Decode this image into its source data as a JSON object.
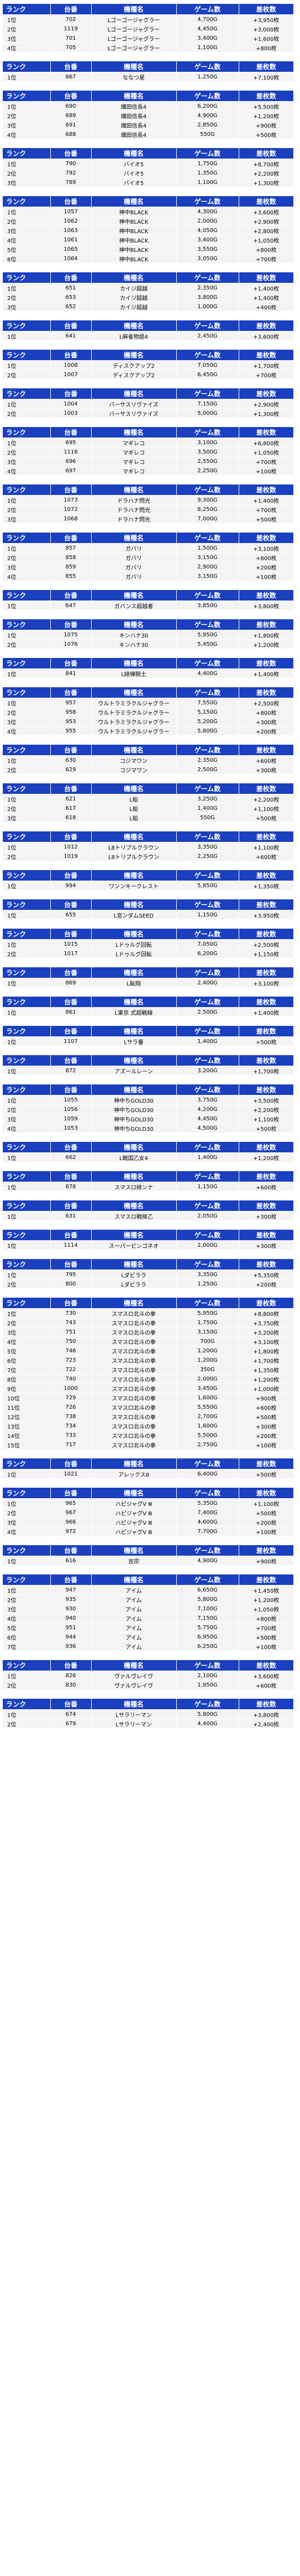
{
  "headers": {
    "rank": "ランク",
    "machine": "台番",
    "model": "機種名",
    "games": "ゲーム数",
    "diff": "差枚数"
  },
  "groups": [
    {
      "rows": [
        {
          "rank": "1位",
          "machine": "702",
          "model": "Lゴーゴージャグラー",
          "games": "4,700G",
          "diff": "+3,950枚"
        },
        {
          "rank": "2位",
          "machine": "1119",
          "model": "Lゴーゴージャグラー",
          "games": "4,450G",
          "diff": "+3,000枚"
        },
        {
          "rank": "3位",
          "machine": "701",
          "model": "Lゴーゴージャグラー",
          "games": "3,400G",
          "diff": "+1,600枚"
        },
        {
          "rank": "4位",
          "machine": "705",
          "model": "Lゴーゴージャグラー",
          "games": "1,100G",
          "diff": "+800枚"
        }
      ]
    },
    {
      "rows": [
        {
          "rank": "1位",
          "machine": "867",
          "model": "ななつ星",
          "games": "1,250G",
          "diff": "+7,100枚"
        }
      ]
    },
    {
      "rows": [
        {
          "rank": "1位",
          "machine": "690",
          "model": "織田信長4",
          "games": "6,200G",
          "diff": "+5,500枚"
        },
        {
          "rank": "2位",
          "machine": "689",
          "model": "織田信長4",
          "games": "4,900G",
          "diff": "+1,200枚"
        },
        {
          "rank": "3位",
          "machine": "691",
          "model": "織田信長4",
          "games": "2,850G",
          "diff": "+900枚"
        },
        {
          "rank": "4位",
          "machine": "688",
          "model": "織田信長4",
          "games": "550G",
          "diff": "+500枚"
        }
      ]
    },
    {
      "rows": [
        {
          "rank": "1位",
          "machine": "790",
          "model": "バイオ5",
          "games": "1,750G",
          "diff": "+8,700枚"
        },
        {
          "rank": "2位",
          "machine": "792",
          "model": "バイオ5",
          "games": "1,350G",
          "diff": "+2,200枚"
        },
        {
          "rank": "3位",
          "machine": "789",
          "model": "バイオ5",
          "games": "1,100G",
          "diff": "+1,300枚"
        }
      ]
    },
    {
      "rows": [
        {
          "rank": "1位",
          "machine": "1057",
          "model": "神中BLACK",
          "games": "4,300G",
          "diff": "+3,600枚"
        },
        {
          "rank": "2位",
          "machine": "1062",
          "model": "神中BLACK",
          "games": "2,000G",
          "diff": "+2,900枚"
        },
        {
          "rank": "3位",
          "machine": "1063",
          "model": "神中BLACK",
          "games": "4,050G",
          "diff": "+2,800枚"
        },
        {
          "rank": "4位",
          "machine": "1061",
          "model": "神中BLACK",
          "games": "3,400G",
          "diff": "+1,050枚"
        },
        {
          "rank": "5位",
          "machine": "1065",
          "model": "神中BLACK",
          "games": "3,550G",
          "diff": "+800枚"
        },
        {
          "rank": "6位",
          "machine": "1064",
          "model": "神中BLACK",
          "games": "3,050G",
          "diff": "+700枚"
        }
      ]
    },
    {
      "rows": [
        {
          "rank": "1位",
          "machine": "651",
          "model": "カイジ超越",
          "games": "2,350G",
          "diff": "+1,400枚"
        },
        {
          "rank": "2位",
          "machine": "653",
          "model": "カイジ超越",
          "games": "3,800G",
          "diff": "+1,400枚"
        },
        {
          "rank": "3位",
          "machine": "652",
          "model": "カイジ超越",
          "games": "1,000G",
          "diff": "+400枚"
        }
      ]
    },
    {
      "rows": [
        {
          "rank": "1位",
          "machine": "641",
          "model": "L麻雀物語4",
          "games": "2,450G",
          "diff": "+3,600枚"
        }
      ]
    },
    {
      "rows": [
        {
          "rank": "1位",
          "machine": "1008",
          "model": "ディスクアップ2",
          "games": "7,050G",
          "diff": "+1,700枚"
        },
        {
          "rank": "2位",
          "machine": "1007",
          "model": "ディスクアップ2",
          "games": "6,450G",
          "diff": "+700枚"
        }
      ]
    },
    {
      "rows": [
        {
          "rank": "1位",
          "machine": "1004",
          "model": "バーサスリヴァイズ",
          "games": "7,150G",
          "diff": "+2,900枚"
        },
        {
          "rank": "2位",
          "machine": "1003",
          "model": "バーサスリヴァイズ",
          "games": "5,000G",
          "diff": "+1,300枚"
        }
      ]
    },
    {
      "rows": [
        {
          "rank": "1位",
          "machine": "695",
          "model": "マギレコ",
          "games": "3,100G",
          "diff": "+6,800枚"
        },
        {
          "rank": "2位",
          "machine": "1116",
          "model": "マギレコ",
          "games": "3,500G",
          "diff": "+1,050枚"
        },
        {
          "rank": "3位",
          "machine": "696",
          "model": "マギレコ",
          "games": "2,550G",
          "diff": "+700枚"
        },
        {
          "rank": "4位",
          "machine": "697",
          "model": "マギレコ",
          "games": "2,250G",
          "diff": "+100枚"
        }
      ]
    },
    {
      "rows": [
        {
          "rank": "1位",
          "machine": "1073",
          "model": "ドラハナ閃光",
          "games": "9,300G",
          "diff": "+1,400枚"
        },
        {
          "rank": "2位",
          "machine": "1072",
          "model": "ドラハナ閃光",
          "games": "8,250G",
          "diff": "+700枚"
        },
        {
          "rank": "3位",
          "machine": "1068",
          "model": "ドラハナ閃光",
          "games": "7,000G",
          "diff": "+500枚"
        }
      ]
    },
    {
      "rows": [
        {
          "rank": "1位",
          "machine": "857",
          "model": "ガバリ",
          "games": "1,500G",
          "diff": "+3,100枚"
        },
        {
          "rank": "2位",
          "machine": "858",
          "model": "ガバリ",
          "games": "3,150G",
          "diff": "+800枚"
        },
        {
          "rank": "3位",
          "machine": "859",
          "model": "ガバリ",
          "games": "2,900G",
          "diff": "+200枚"
        },
        {
          "rank": "4位",
          "machine": "855",
          "model": "ガバリ",
          "games": "3,150G",
          "diff": "+100枚"
        }
      ]
    },
    {
      "rows": [
        {
          "rank": "1位",
          "machine": "647",
          "model": "ガバンス超越者",
          "games": "3,850G",
          "diff": "+3,800枚"
        }
      ]
    },
    {
      "rows": [
        {
          "rank": "1位",
          "machine": "1075",
          "model": "キンハナ30",
          "games": "5,950G",
          "diff": "+1,800枚"
        },
        {
          "rank": "2位",
          "machine": "1076",
          "model": "キンハナ30",
          "games": "5,450G",
          "diff": "+1,200枚"
        }
      ]
    },
    {
      "rows": [
        {
          "rank": "1位",
          "machine": "841",
          "model": "L緋弾騎士",
          "games": "4,400G",
          "diff": "+1,400枚"
        }
      ]
    },
    {
      "rows": [
        {
          "rank": "1位",
          "machine": "957",
          "model": "ウルトラミラクルジャグラー",
          "games": "7,550G",
          "diff": "+2,500枚"
        },
        {
          "rank": "2位",
          "machine": "958",
          "model": "ウルトラミラクルジャグラー",
          "games": "5,150G",
          "diff": "+800枚"
        },
        {
          "rank": "3位",
          "machine": "953",
          "model": "ウルトラミラクルジャグラー",
          "games": "5,200G",
          "diff": "+300枚"
        },
        {
          "rank": "4位",
          "machine": "955",
          "model": "ウルトラミラクルジャグラー",
          "games": "5,800G",
          "diff": "+200枚"
        }
      ]
    },
    {
      "rows": [
        {
          "rank": "1位",
          "machine": "630",
          "model": "コジマワン",
          "games": "2,350G",
          "diff": "+600枚"
        },
        {
          "rank": "2位",
          "machine": "629",
          "model": "コジマワン",
          "games": "2,500G",
          "diff": "+300枚"
        }
      ]
    },
    {
      "rows": [
        {
          "rank": "1位",
          "machine": "621",
          "model": "L船",
          "games": "3,250G",
          "diff": "+2,200枚"
        },
        {
          "rank": "2位",
          "machine": "617",
          "model": "L船",
          "games": "1,400G",
          "diff": "+1,100枚"
        },
        {
          "rank": "3位",
          "machine": "618",
          "model": "L船",
          "games": "550G",
          "diff": "+500枚"
        }
      ]
    },
    {
      "rows": [
        {
          "rank": "1位",
          "machine": "1012",
          "model": "L8トリプルクラウン",
          "games": "3,350G",
          "diff": "+1,100枚"
        },
        {
          "rank": "2位",
          "machine": "1019",
          "model": "L8トリプルクラウン",
          "games": "2,250G",
          "diff": "+600枚"
        }
      ]
    },
    {
      "rows": [
        {
          "rank": "1位",
          "machine": "994",
          "model": "ワンンキークレスト",
          "games": "5,850G",
          "diff": "+1,350枚"
        }
      ]
    },
    {
      "rows": [
        {
          "rank": "1位",
          "machine": "655",
          "model": "L宮ンダムSEED",
          "games": "1,150G",
          "diff": "+3,950枚"
        }
      ]
    },
    {
      "rows": [
        {
          "rank": "1位",
          "machine": "1015",
          "model": "Lドゥルグ回転",
          "games": "7,050G",
          "diff": "+2,500枚"
        },
        {
          "rank": "2位",
          "machine": "1017",
          "model": "Lドゥルグ回転",
          "games": "6,200G",
          "diff": "+1,150枚"
        }
      ]
    },
    {
      "rows": [
        {
          "rank": "1位",
          "machine": "869",
          "model": "L転翔",
          "games": "2,400G",
          "diff": "+3,100枚"
        }
      ]
    },
    {
      "rows": [
        {
          "rank": "1位",
          "machine": "861",
          "model": "L東京 式超戦線",
          "games": "2,500G",
          "diff": "+1,400枚"
        }
      ]
    },
    {
      "rows": [
        {
          "rank": "1位",
          "machine": "1107",
          "model": "Lサラ番",
          "games": "1,400G",
          "diff": "+500枚"
        }
      ]
    },
    {
      "rows": [
        {
          "rank": "1位",
          "machine": "872",
          "model": "アズールレーン",
          "games": "3,200G",
          "diff": "+1,700枚"
        }
      ]
    },
    {
      "rows": [
        {
          "rank": "1位",
          "machine": "1055",
          "model": "神中ちGOLD30",
          "games": "3,750G",
          "diff": "+3,500枚"
        },
        {
          "rank": "2位",
          "machine": "1056",
          "model": "神中ちGOLD30",
          "games": "4,200G",
          "diff": "+2,200枚"
        },
        {
          "rank": "3位",
          "machine": "1059",
          "model": "神中ちGOLD30",
          "games": "4,450G",
          "diff": "+1,100枚"
        },
        {
          "rank": "4位",
          "machine": "1053",
          "model": "神中ちGOLD30",
          "games": "4,500G",
          "diff": "+500枚"
        }
      ]
    },
    {
      "rows": [
        {
          "rank": "1位",
          "machine": "662",
          "model": "L戦国乙女4",
          "games": "1,400G",
          "diff": "+1,200枚"
        }
      ]
    },
    {
      "rows": [
        {
          "rank": "1位",
          "machine": "878",
          "model": "スマスロ緋ンナ",
          "games": "1,150G",
          "diff": "+600枚"
        }
      ]
    },
    {
      "rows": [
        {
          "rank": "1位",
          "machine": "631",
          "model": "スマスロ戦極乙",
          "games": "2,050G",
          "diff": "+300枚"
        }
      ]
    },
    {
      "rows": [
        {
          "rank": "1位",
          "machine": "1114",
          "model": "スーパービンゴネオ",
          "games": "2,000G",
          "diff": "+300枚"
        }
      ]
    },
    {
      "rows": [
        {
          "rank": "1位",
          "machine": "795",
          "model": "Lダビララ",
          "games": "3,350G",
          "diff": "+5,350枚"
        },
        {
          "rank": "2位",
          "machine": "800",
          "model": "Lダビララ",
          "games": "1,250G",
          "diff": "+200枚"
        }
      ]
    },
    {
      "rows": [
        {
          "rank": "1位",
          "machine": "730",
          "model": "スマスロ北斗の拳",
          "games": "5,950G",
          "diff": "+8,800枚"
        },
        {
          "rank": "2位",
          "machine": "743",
          "model": "スマスロ北斗の拳",
          "games": "1,750G",
          "diff": "+3,750枚"
        },
        {
          "rank": "3位",
          "machine": "751",
          "model": "スマスロ北斗の拳",
          "games": "3,150G",
          "diff": "+3,200枚"
        },
        {
          "rank": "4位",
          "machine": "750",
          "model": "スマスロ北斗の拳",
          "games": "700G",
          "diff": "+3,100枚"
        },
        {
          "rank": "5位",
          "machine": "746",
          "model": "スマスロ北斗の拳",
          "games": "1,200G",
          "diff": "+1,800枚"
        },
        {
          "rank": "6位",
          "machine": "723",
          "model": "スマスロ北斗の拳",
          "games": "1,200G",
          "diff": "+1,700枚"
        },
        {
          "rank": "7位",
          "machine": "722",
          "model": "スマスロ北斗の拳",
          "games": "350G",
          "diff": "+1,350枚"
        },
        {
          "rank": "8位",
          "machine": "740",
          "model": "スマスロ北斗の拳",
          "games": "2,000G",
          "diff": "+1,200枚"
        },
        {
          "rank": "9位",
          "machine": "1000",
          "model": "スマスロ北斗の拳",
          "games": "3,450G",
          "diff": "+1,000枚"
        },
        {
          "rank": "10位",
          "machine": "729",
          "model": "スマスロ北斗の拳",
          "games": "1,600G",
          "diff": "+900枚"
        },
        {
          "rank": "11位",
          "machine": "726",
          "model": "スマスロ北斗の拳",
          "games": "5,550G",
          "diff": "+600枚"
        },
        {
          "rank": "12位",
          "machine": "738",
          "model": "スマスロ北斗の拳",
          "games": "2,700G",
          "diff": "+500枚"
        },
        {
          "rank": "13位",
          "machine": "734",
          "model": "スマスロ北斗の拳",
          "games": "1,600G",
          "diff": "+300枚"
        },
        {
          "rank": "14位",
          "machine": "733",
          "model": "スマスロ北斗の拳",
          "games": "5,500G",
          "diff": "+200枚"
        },
        {
          "rank": "15位",
          "machine": "717",
          "model": "スマスロ北斗の拳",
          "games": "2,750G",
          "diff": "+100枚"
        }
      ]
    },
    {
      "rows": [
        {
          "rank": "1位",
          "machine": "1021",
          "model": "アレックス8",
          "games": "6,400G",
          "diff": "+500枚"
        }
      ]
    },
    {
      "rows": [
        {
          "rank": "1位",
          "machine": "965",
          "model": "ハピジャグV Ⅲ",
          "games": "5,350G",
          "diff": "+1,100枚"
        },
        {
          "rank": "2位",
          "machine": "967",
          "model": "ハピジャグV Ⅲ",
          "games": "7,400G",
          "diff": "+500枚"
        },
        {
          "rank": "3位",
          "machine": "966",
          "model": "ハピジャグV Ⅲ",
          "games": "4,600G",
          "diff": "+200枚"
        },
        {
          "rank": "4位",
          "machine": "972",
          "model": "ハピジャグV Ⅲ",
          "games": "7,700G",
          "diff": "+100枚"
        }
      ]
    },
    {
      "rows": [
        {
          "rank": "1位",
          "machine": "616",
          "model": "吉宗",
          "games": "4,900G",
          "diff": "+900枚"
        }
      ]
    },
    {
      "rows": [
        {
          "rank": "1位",
          "machine": "947",
          "model": "アイム",
          "games": "6,650G",
          "diff": "+1,450枚"
        },
        {
          "rank": "2位",
          "machine": "935",
          "model": "アイム",
          "games": "5,800G",
          "diff": "+1,200枚"
        },
        {
          "rank": "3位",
          "machine": "930",
          "model": "アイム",
          "games": "7,100G",
          "diff": "+1,050枚"
        },
        {
          "rank": "4位",
          "machine": "940",
          "model": "アイム",
          "games": "7,150G",
          "diff": "+800枚"
        },
        {
          "rank": "5位",
          "machine": "951",
          "model": "アイム",
          "games": "5,750G",
          "diff": "+700枚"
        },
        {
          "rank": "6位",
          "machine": "944",
          "model": "アイム",
          "games": "6,950G",
          "diff": "+500枚"
        },
        {
          "rank": "7位",
          "machine": "936",
          "model": "アイム",
          "games": "6,250G",
          "diff": "+100枚"
        }
      ]
    },
    {
      "rows": [
        {
          "rank": "1位",
          "machine": "826",
          "model": "ヴァルヴレイヴ",
          "games": "2,100G",
          "diff": "+3,600枚"
        },
        {
          "rank": "2位",
          "machine": "830",
          "model": "ヴァルヴレイヴ",
          "games": "1,950G",
          "diff": "+600枚"
        }
      ]
    },
    {
      "rows": [
        {
          "rank": "1位",
          "machine": "674",
          "model": "Lサラリーマン",
          "games": "5,800G",
          "diff": "+3,800枚"
        },
        {
          "rank": "2位",
          "machine": "679",
          "model": "Lサラリーマン",
          "games": "4,400G",
          "diff": "+2,400枚"
        }
      ]
    }
  ]
}
